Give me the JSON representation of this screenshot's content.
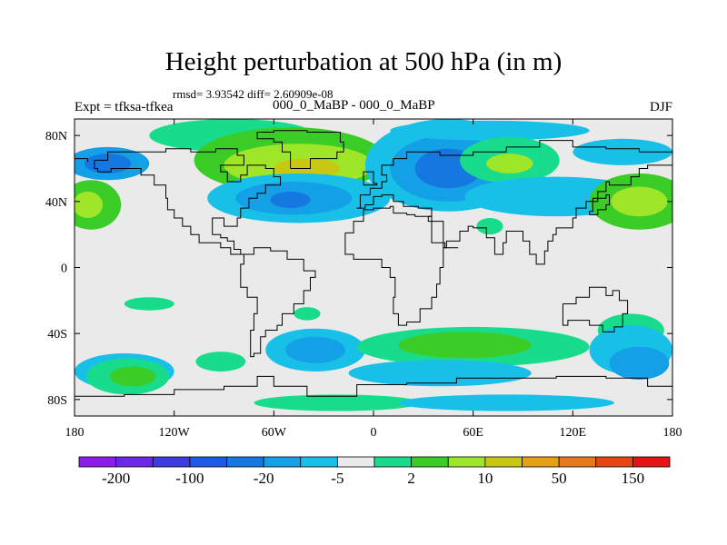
{
  "title": "Height perturbation at 500 hPa (in m)",
  "stats": "rmsd= 3.93542 diff= 2.60909e-08",
  "left_label": "Expt = tfksa-tfkea",
  "center_label": "000_0_MaBP - 000_0_MaBP",
  "right_label": "DJF",
  "x_ticks": [
    {
      "value": -180,
      "label": "180"
    },
    {
      "value": -120,
      "label": "120W"
    },
    {
      "value": -60,
      "label": "60W"
    },
    {
      "value": 0,
      "label": "0"
    },
    {
      "value": 60,
      "label": "60E"
    },
    {
      "value": 120,
      "label": "120E"
    },
    {
      "value": 180,
      "label": "180"
    }
  ],
  "y_ticks": [
    {
      "value": 80,
      "label": "80N"
    },
    {
      "value": 40,
      "label": "40N"
    },
    {
      "value": 0,
      "label": "0"
    },
    {
      "value": -40,
      "label": "40S"
    },
    {
      "value": -80,
      "label": "80S"
    }
  ],
  "lat_range": [
    -90,
    90
  ],
  "lon_range": [
    -180,
    180
  ],
  "colorbar": {
    "colors": [
      "#8c1eeb",
      "#6a28e8",
      "#3c3ce0",
      "#1e5ae8",
      "#1478e0",
      "#14a0e6",
      "#18c0e8",
      "#eaeaea",
      "#18dc8c",
      "#3ccc28",
      "#a0e628",
      "#c8c814",
      "#e6a014",
      "#e6781e",
      "#e64614",
      "#e61414"
    ],
    "labels": [
      {
        "boundary": 1,
        "label": "-200"
      },
      {
        "boundary": 3,
        "label": "-100"
      },
      {
        "boundary": 5,
        "label": "-20"
      },
      {
        "boundary": 7,
        "label": "-5"
      },
      {
        "boundary": 9,
        "label": "2"
      },
      {
        "boundary": 11,
        "label": "10"
      },
      {
        "boundary": 13,
        "label": "50"
      },
      {
        "boundary": 15,
        "label": "150"
      }
    ]
  },
  "background_color": "#eaeaea",
  "anomaly_patches": [
    {
      "lon": -160,
      "lat": 63,
      "rlon": 25,
      "rlat": 10,
      "color": "#14a0e6"
    },
    {
      "lon": -160,
      "lat": 63,
      "rlon": 14,
      "rlat": 6,
      "color": "#1478e0"
    },
    {
      "lon": -170,
      "lat": 38,
      "rlon": 18,
      "rlat": 15,
      "color": "#3ccc28"
    },
    {
      "lon": -172,
      "lat": 38,
      "rlon": 9,
      "rlat": 8,
      "color": "#a0e628"
    },
    {
      "lon": -85,
      "lat": 80,
      "rlon": 50,
      "rlat": 10,
      "color": "#18dc8c"
    },
    {
      "lon": -50,
      "lat": 65,
      "rlon": 58,
      "rlat": 20,
      "color": "#3ccc28"
    },
    {
      "lon": -45,
      "lat": 62,
      "rlon": 45,
      "rlat": 13,
      "color": "#a0e628"
    },
    {
      "lon": -40,
      "lat": 60,
      "rlon": 20,
      "rlat": 6,
      "color": "#c8c814"
    },
    {
      "lon": -45,
      "lat": 42,
      "rlon": 55,
      "rlat": 15,
      "color": "#18c0e8"
    },
    {
      "lon": -48,
      "lat": 42,
      "rlon": 35,
      "rlat": 10,
      "color": "#14a0e6"
    },
    {
      "lon": -50,
      "lat": 41,
      "rlon": 12,
      "rlat": 5,
      "color": "#1478e0"
    },
    {
      "lon": 45,
      "lat": 62,
      "rlon": 50,
      "rlat": 28,
      "color": "#18c0e8"
    },
    {
      "lon": 45,
      "lat": 60,
      "rlon": 35,
      "rlat": 20,
      "color": "#14a0e6"
    },
    {
      "lon": 45,
      "lat": 60,
      "rlon": 20,
      "rlat": 12,
      "color": "#1478e0"
    },
    {
      "lon": 70,
      "lat": 83,
      "rlon": 60,
      "rlat": 6,
      "color": "#18c0e8"
    },
    {
      "lon": 82,
      "lat": 65,
      "rlon": 30,
      "rlat": 14,
      "color": "#18dc8c"
    },
    {
      "lon": 82,
      "lat": 63,
      "rlon": 14,
      "rlat": 6,
      "color": "#a0e628"
    },
    {
      "lon": 110,
      "lat": 43,
      "rlon": 55,
      "rlat": 12,
      "color": "#18c0e8"
    },
    {
      "lon": 150,
      "lat": 70,
      "rlon": 30,
      "rlat": 8,
      "color": "#18c0e8"
    },
    {
      "lon": 160,
      "lat": 40,
      "rlon": 30,
      "rlat": 17,
      "color": "#3ccc28"
    },
    {
      "lon": 160,
      "lat": 40,
      "rlon": 17,
      "rlat": 9,
      "color": "#a0e628"
    },
    {
      "lon": 70,
      "lat": 25,
      "rlon": 8,
      "rlat": 5,
      "color": "#18dc8c"
    },
    {
      "lon": -135,
      "lat": -22,
      "rlon": 15,
      "rlat": 4,
      "color": "#18dc8c"
    },
    {
      "lon": -40,
      "lat": -28,
      "rlon": 8,
      "rlat": 4,
      "color": "#18dc8c"
    },
    {
      "lon": -35,
      "lat": -50,
      "rlon": 30,
      "rlat": 13,
      "color": "#18c0e8"
    },
    {
      "lon": -35,
      "lat": -50,
      "rlon": 18,
      "rlat": 8,
      "color": "#14a0e6"
    },
    {
      "lon": -150,
      "lat": -63,
      "rlon": 30,
      "rlat": 11,
      "color": "#18c0e8"
    },
    {
      "lon": -148,
      "lat": -66,
      "rlon": 25,
      "rlat": 11,
      "color": "#18dc8c"
    },
    {
      "lon": -145,
      "lat": -66,
      "rlon": 14,
      "rlat": 6,
      "color": "#3ccc28"
    },
    {
      "lon": -92,
      "lat": -57,
      "rlon": 15,
      "rlat": 6,
      "color": "#18dc8c"
    },
    {
      "lon": 60,
      "lat": -48,
      "rlon": 70,
      "rlat": 12,
      "color": "#18dc8c"
    },
    {
      "lon": 55,
      "lat": -47,
      "rlon": 40,
      "rlat": 8,
      "color": "#3ccc28"
    },
    {
      "lon": 40,
      "lat": -64,
      "rlon": 55,
      "rlat": 8,
      "color": "#18c0e8"
    },
    {
      "lon": 155,
      "lat": -38,
      "rlon": 20,
      "rlat": 10,
      "color": "#18dc8c"
    },
    {
      "lon": 155,
      "lat": -50,
      "rlon": 25,
      "rlat": 15,
      "color": "#18c0e8"
    },
    {
      "lon": 160,
      "lat": -58,
      "rlon": 18,
      "rlat": 10,
      "color": "#14a0e6"
    },
    {
      "lon": -22,
      "lat": -82,
      "rlon": 50,
      "rlat": 5,
      "color": "#18dc8c"
    },
    {
      "lon": 80,
      "lat": -82,
      "rlon": 65,
      "rlat": 5,
      "color": "#18c0e8"
    }
  ],
  "coastlines": [
    [
      [
        -168,
        65
      ],
      [
        -160,
        70
      ],
      [
        -140,
        70
      ],
      [
        -125,
        72
      ],
      [
        -110,
        70
      ],
      [
        -95,
        72
      ],
      [
        -82,
        68
      ],
      [
        -78,
        62
      ],
      [
        -92,
        58
      ],
      [
        -88,
        52
      ],
      [
        -80,
        56
      ],
      [
        -76,
        62
      ],
      [
        -65,
        60
      ],
      [
        -60,
        55
      ],
      [
        -56,
        50
      ],
      [
        -65,
        45
      ],
      [
        -70,
        42
      ],
      [
        -75,
        36
      ],
      [
        -80,
        30
      ],
      [
        -82,
        25
      ],
      [
        -90,
        30
      ],
      [
        -97,
        26
      ],
      [
        -97,
        20
      ],
      [
        -92,
        18
      ],
      [
        -88,
        16
      ],
      [
        -84,
        11
      ],
      [
        -80,
        8
      ],
      [
        -78,
        8
      ],
      [
        -86,
        12
      ],
      [
        -92,
        15
      ],
      [
        -105,
        20
      ],
      [
        -110,
        25
      ],
      [
        -115,
        30
      ],
      [
        -120,
        35
      ],
      [
        -124,
        42
      ],
      [
        -125,
        50
      ],
      [
        -132,
        56
      ],
      [
        -140,
        60
      ],
      [
        -150,
        60
      ],
      [
        -158,
        58
      ],
      [
        -166,
        60
      ],
      [
        -168,
        65
      ]
    ],
    [
      [
        -80,
        8
      ],
      [
        -72,
        12
      ],
      [
        -62,
        10
      ],
      [
        -52,
        5
      ],
      [
        -42,
        -2
      ],
      [
        -35,
        -6
      ],
      [
        -38,
        -14
      ],
      [
        -42,
        -22
      ],
      [
        -48,
        -28
      ],
      [
        -55,
        -35
      ],
      [
        -58,
        -38
      ],
      [
        -65,
        -42
      ],
      [
        -68,
        -52
      ],
      [
        -72,
        -54
      ],
      [
        -74,
        -48
      ],
      [
        -74,
        -38
      ],
      [
        -72,
        -28
      ],
      [
        -70,
        -18
      ],
      [
        -76,
        -12
      ],
      [
        -80,
        -5
      ],
      [
        -80,
        2
      ],
      [
        -78,
        8
      ],
      [
        -80,
        8
      ]
    ],
    [
      [
        -50,
        60
      ],
      [
        -44,
        60
      ],
      [
        -38,
        66
      ],
      [
        -22,
        70
      ],
      [
        -18,
        76
      ],
      [
        -20,
        82
      ],
      [
        -40,
        83
      ],
      [
        -60,
        82
      ],
      [
        -70,
        78
      ],
      [
        -60,
        76
      ],
      [
        -55,
        70
      ],
      [
        -50,
        60
      ]
    ],
    [
      [
        -10,
        36
      ],
      [
        -8,
        44
      ],
      [
        -2,
        48
      ],
      [
        5,
        52
      ],
      [
        8,
        56
      ],
      [
        5,
        62
      ],
      [
        12,
        66
      ],
      [
        20,
        70
      ],
      [
        30,
        70
      ],
      [
        40,
        68
      ],
      [
        60,
        70
      ],
      [
        80,
        73
      ],
      [
        100,
        77
      ],
      [
        120,
        73
      ],
      [
        140,
        72
      ],
      [
        160,
        70
      ],
      [
        180,
        68
      ]
    ],
    [
      [
        -180,
        66
      ],
      [
        -172,
        64
      ]
    ],
    [
      [
        180,
        62
      ],
      [
        165,
        60
      ],
      [
        160,
        55
      ],
      [
        155,
        50
      ],
      [
        142,
        52
      ],
      [
        140,
        46
      ],
      [
        135,
        40
      ],
      [
        128,
        36
      ],
      [
        122,
        30
      ],
      [
        120,
        24
      ],
      [
        110,
        20
      ],
      [
        108,
        16
      ],
      [
        105,
        10
      ],
      [
        103,
        2
      ],
      [
        98,
        8
      ],
      [
        94,
        16
      ],
      [
        90,
        22
      ],
      [
        80,
        15
      ],
      [
        78,
        8
      ],
      [
        73,
        18
      ],
      [
        68,
        24
      ],
      [
        60,
        25
      ],
      [
        57,
        22
      ],
      [
        52,
        16
      ],
      [
        44,
        12
      ],
      [
        43,
        15
      ],
      [
        35,
        28
      ],
      [
        33,
        31
      ],
      [
        35,
        36
      ],
      [
        27,
        37
      ],
      [
        22,
        37
      ],
      [
        18,
        40
      ],
      [
        12,
        44
      ],
      [
        5,
        43
      ],
      [
        0,
        38
      ],
      [
        -5,
        36
      ],
      [
        -10,
        36
      ]
    ],
    [
      [
        -17,
        21
      ],
      [
        -12,
        28
      ],
      [
        -6,
        35
      ],
      [
        0,
        36
      ],
      [
        10,
        37
      ],
      [
        12,
        33
      ],
      [
        20,
        32
      ],
      [
        25,
        31
      ],
      [
        32,
        31
      ],
      [
        35,
        28
      ],
      [
        42,
        12
      ],
      [
        51,
        12
      ],
      [
        42,
        0
      ],
      [
        40,
        -10
      ],
      [
        38,
        -18
      ],
      [
        35,
        -25
      ],
      [
        28,
        -33
      ],
      [
        20,
        -35
      ],
      [
        15,
        -28
      ],
      [
        12,
        -18
      ],
      [
        13,
        -6
      ],
      [
        10,
        0
      ],
      [
        5,
        5
      ],
      [
        -5,
        5
      ],
      [
        -12,
        8
      ],
      [
        -17,
        15
      ],
      [
        -17,
        21
      ]
    ],
    [
      [
        114,
        -22
      ],
      [
        122,
        -18
      ],
      [
        130,
        -12
      ],
      [
        137,
        -12
      ],
      [
        140,
        -17
      ],
      [
        144,
        -14
      ],
      [
        148,
        -20
      ],
      [
        153,
        -28
      ],
      [
        150,
        -36
      ],
      [
        145,
        -39
      ],
      [
        138,
        -35
      ],
      [
        130,
        -32
      ],
      [
        117,
        -35
      ],
      [
        114,
        -28
      ],
      [
        114,
        -22
      ]
    ],
    [
      [
        -6,
        50
      ],
      [
        2,
        51
      ],
      [
        0,
        58
      ],
      [
        -5,
        58
      ],
      [
        -6,
        50
      ]
    ],
    [
      [
        130,
        32
      ],
      [
        135,
        35
      ],
      [
        140,
        38
      ],
      [
        142,
        44
      ],
      [
        140,
        42
      ],
      [
        132,
        34
      ],
      [
        130,
        32
      ]
    ],
    [
      [
        -180,
        -78
      ],
      [
        -150,
        -77
      ],
      [
        -120,
        -74
      ],
      [
        -90,
        -72
      ],
      [
        -70,
        -66
      ],
      [
        -60,
        -72
      ],
      [
        -40,
        -78
      ],
      [
        -10,
        -71
      ],
      [
        20,
        -70
      ],
      [
        50,
        -67
      ],
      [
        80,
        -67
      ],
      [
        110,
        -66
      ],
      [
        140,
        -67
      ],
      [
        165,
        -72
      ],
      [
        180,
        -78
      ]
    ]
  ]
}
